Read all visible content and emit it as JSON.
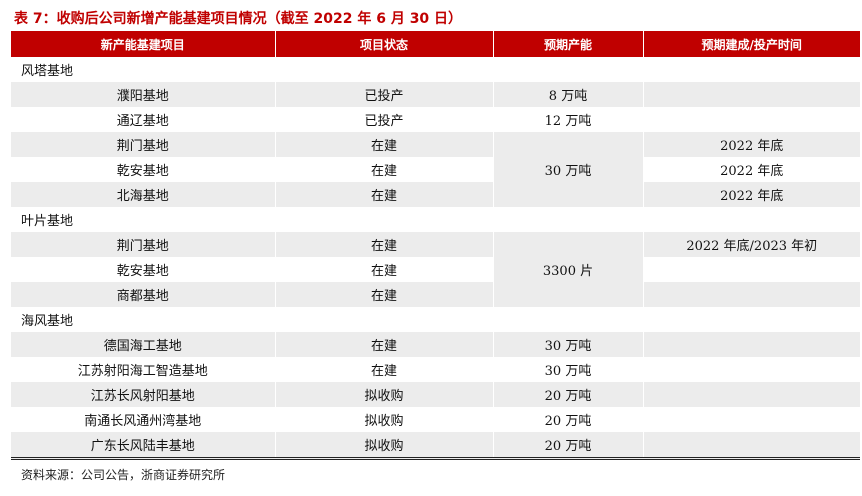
{
  "title": "表 7：收购后公司新增产能基建项目情况（截至 2022 年 6 月 30 日）",
  "headers": [
    "新产能基建项目",
    "项目状态",
    "预期产能",
    "预期建成/投产时间"
  ],
  "sections": [
    {
      "name": "风塔基地",
      "rows": [
        {
          "project": "濮阳基地",
          "status": "已投产",
          "capacity": "8 万吨",
          "time": ""
        },
        {
          "project": "通辽基地",
          "status": "已投产",
          "capacity": "12 万吨",
          "time": ""
        },
        {
          "project": "荆门基地",
          "status": "在建",
          "capacity": "30 万吨",
          "time": "2022 年底"
        },
        {
          "project": "乾安基地",
          "status": "在建",
          "capacity": "",
          "time": "2022 年底"
        },
        {
          "project": "北海基地",
          "status": "在建",
          "capacity": "",
          "time": "2022 年底"
        }
      ]
    },
    {
      "name": "叶片基地",
      "rows": [
        {
          "project": "荆门基地",
          "status": "在建",
          "capacity": "3300 片",
          "time": "2022 年底/2023 年初"
        },
        {
          "project": "乾安基地",
          "status": "在建",
          "capacity": "",
          "time": ""
        },
        {
          "project": "商都基地",
          "status": "在建",
          "capacity": "",
          "time": ""
        }
      ]
    },
    {
      "name": "海风基地",
      "rows": [
        {
          "project": "德国海工基地",
          "status": "在建",
          "capacity": "30 万吨",
          "time": ""
        },
        {
          "project": "江苏射阳海工智造基地",
          "status": "在建",
          "capacity": "30 万吨",
          "time": ""
        },
        {
          "project": "江苏长风射阳基地",
          "status": "拟收购",
          "capacity": "20 万吨",
          "time": ""
        },
        {
          "project": "南通长风通州湾基地",
          "status": "拟收购",
          "capacity": "20 万吨",
          "time": ""
        },
        {
          "project": "广东长风陆丰基地",
          "status": "拟收购",
          "capacity": "20 万吨",
          "time": ""
        }
      ]
    }
  ],
  "source": "资料来源：公司公告，浙商证券研究所",
  "colors": {
    "header_bg": "#c00000",
    "stripe": "#ececec"
  }
}
